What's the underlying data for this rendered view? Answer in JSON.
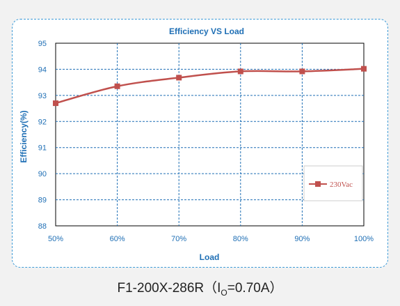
{
  "chart_data": {
    "type": "line",
    "title": "Efficiency VS  Load",
    "xlabel": "Load",
    "ylabel": "Efficiency(%)",
    "categories": [
      "50%",
      "60%",
      "70%",
      "80%",
      "90%",
      "100%"
    ],
    "x": [
      50,
      60,
      70,
      80,
      90,
      100
    ],
    "xlim": [
      50,
      100
    ],
    "ylim": [
      88,
      95
    ],
    "yticks": [
      "88",
      "89",
      "90",
      "91",
      "92",
      "93",
      "94",
      "95"
    ],
    "grid": true,
    "legend_position": "right",
    "series": [
      {
        "name": "230Vac",
        "values": [
          92.7,
          93.35,
          93.68,
          93.92,
          93.92,
          94.02
        ],
        "color": "#c0504d"
      }
    ],
    "colors": {
      "accent": "#1f6fb5",
      "grid": "#1f6fb5",
      "series": "#c0504d"
    }
  },
  "caption": {
    "prefix": "F1-200X-286R（I",
    "sub": "O",
    "suffix": "=0.70A）"
  }
}
